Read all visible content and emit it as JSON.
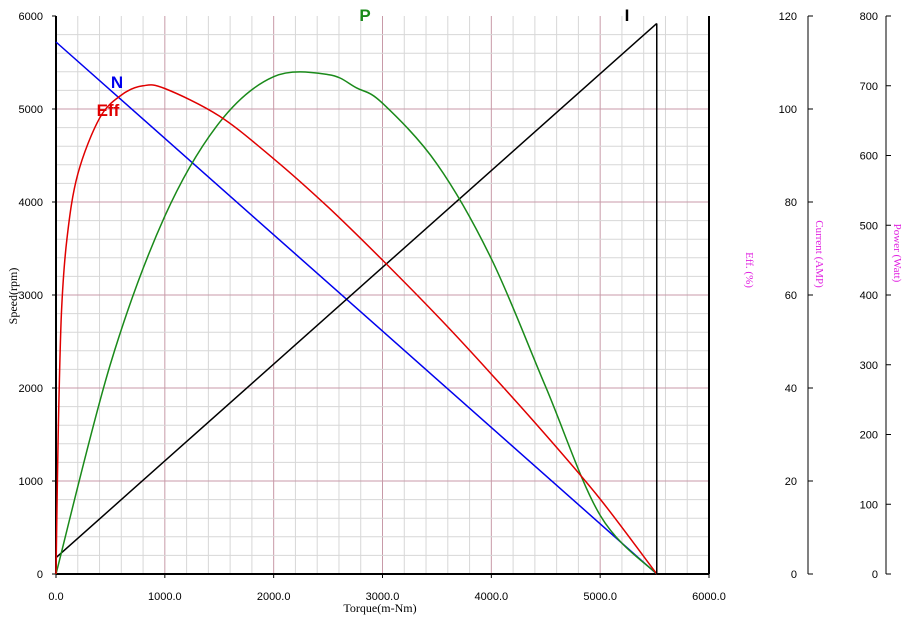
{
  "chart_data": {
    "type": "line",
    "x_label": "Torque(m-Nm)",
    "y_label": "Speed(rpm)",
    "eff_axis_label": "Eff. (%)",
    "current_axis_label": "Current (AMP)",
    "power_axis_label": "Power (Watt)",
    "xlim": [
      0,
      6000
    ],
    "ylim_speed": [
      0,
      6000
    ],
    "ylim_current": [
      0,
      120
    ],
    "ylim_power": [
      0,
      800
    ],
    "x_ticks": [
      "0.0",
      "1000.0",
      "2000.0",
      "3000.0",
      "4000.0",
      "5000.0",
      "6000.0"
    ],
    "speed_ticks": [
      "0",
      "1000",
      "2000",
      "3000",
      "4000",
      "5000",
      "6000"
    ],
    "current_ticks": [
      "0",
      "20",
      "40",
      "60",
      "80",
      "100",
      "120"
    ],
    "power_ticks": [
      "0",
      "100",
      "200",
      "300",
      "400",
      "500",
      "600",
      "700",
      "800"
    ],
    "grid": "on",
    "stall_torque": 5520,
    "series": [
      {
        "name": "N",
        "color": "#0000ee",
        "axis": "speed",
        "x": [
          0,
          5520
        ],
        "y": [
          5720,
          0
        ]
      },
      {
        "name": "I",
        "color": "#000000",
        "axis": "current",
        "x": [
          0,
          5520
        ],
        "y": [
          3.5,
          118.4
        ]
      },
      {
        "name": "P",
        "color": "#1a8a1a",
        "axis": "power",
        "x": [
          0,
          500,
          1000,
          1500,
          2000,
          2500,
          2760,
          3000,
          3500,
          4000,
          4500,
          5000,
          5520
        ],
        "y": [
          0,
          301,
          513,
          647,
          713,
          716,
          697,
          675,
          588,
          452,
          268,
          84,
          0
        ]
      },
      {
        "name": "Eff",
        "color": "#e00000",
        "axis": "eff",
        "x": [
          0,
          20,
          50,
          100,
          200,
          400,
          600,
          800,
          1000,
          1500,
          2000,
          2500,
          3000,
          3500,
          4000,
          4500,
          5000,
          5520
        ],
        "y": [
          0,
          30,
          56,
          72,
          86,
          98,
          103,
          105,
          104.4,
          98.5,
          89.3,
          78.9,
          67.5,
          55.6,
          43,
          29.9,
          16.1,
          0
        ]
      }
    ]
  }
}
